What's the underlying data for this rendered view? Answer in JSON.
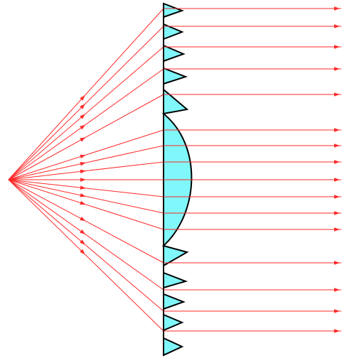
{
  "diagram": {
    "subject": "fresnel-lens-collimation",
    "colors": {
      "lens_fill": "#7ff7fb",
      "lens_outline": "#000000",
      "ray": "#ff2a2a",
      "background": "#ffffff"
    },
    "ray_count": 16
  }
}
